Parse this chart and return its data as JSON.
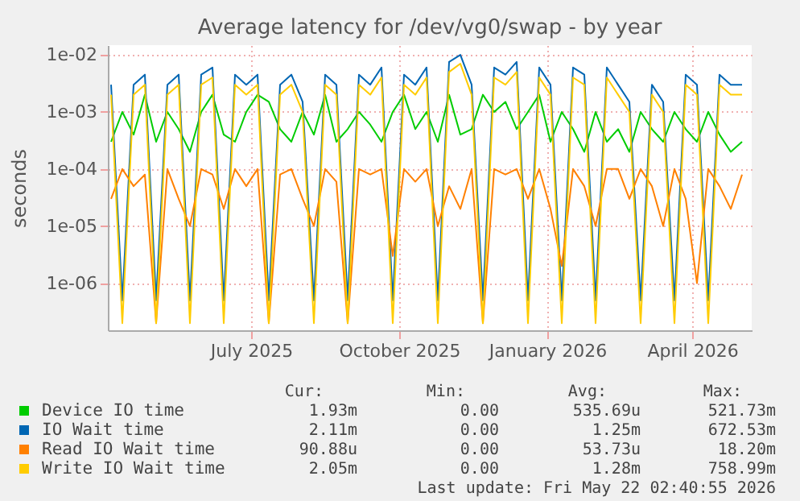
{
  "chart_data": {
    "type": "line",
    "title": "Average latency for /dev/vg0/swap - by year",
    "ylabel": "seconds",
    "log": "y",
    "grid": true,
    "legend": "bottom",
    "marker": "none",
    "line_style": "solid",
    "xlim": [
      "2025-04-03",
      "2026-05-08"
    ],
    "xticks": [
      {
        "value": "2025-07-01",
        "label": "July 2025"
      },
      {
        "value": "2025-10-01",
        "label": "October 2025"
      },
      {
        "value": "2026-01-01",
        "label": "January 2026"
      },
      {
        "value": "2026-04-01",
        "label": "April 2026"
      }
    ],
    "ylim": [
      1.5e-07,
      0.0148
    ],
    "yticks": [
      {
        "value": 0.01,
        "label": "1e-02"
      },
      {
        "value": 0.001,
        "label": "1e-03"
      },
      {
        "value": 0.0001,
        "label": "1e-04"
      },
      {
        "value": 1e-05,
        "label": "1e-05"
      },
      {
        "value": 1e-06,
        "label": "1e-06"
      }
    ],
    "x": [
      "2025-04-05",
      "2025-04-12",
      "2025-04-19",
      "2025-04-26",
      "2025-05-03",
      "2025-05-10",
      "2025-05-17",
      "2025-05-24",
      "2025-05-31",
      "2025-06-07",
      "2025-06-14",
      "2025-06-21",
      "2025-06-28",
      "2025-07-05",
      "2025-07-12",
      "2025-07-19",
      "2025-07-26",
      "2025-08-02",
      "2025-08-09",
      "2025-08-16",
      "2025-08-23",
      "2025-08-30",
      "2025-09-06",
      "2025-09-13",
      "2025-09-20",
      "2025-09-27",
      "2025-10-04",
      "2025-10-11",
      "2025-10-18",
      "2025-10-25",
      "2025-11-01",
      "2025-11-08",
      "2025-11-15",
      "2025-11-22",
      "2025-11-29",
      "2025-12-06",
      "2025-12-13",
      "2025-12-20",
      "2025-12-27",
      "2026-01-03",
      "2026-01-10",
      "2026-01-17",
      "2026-01-24",
      "2026-01-31",
      "2026-02-07",
      "2026-02-14",
      "2026-02-21",
      "2026-02-28",
      "2026-03-07",
      "2026-03-14",
      "2026-03-21",
      "2026-03-28",
      "2026-04-04",
      "2026-04-11",
      "2026-04-18",
      "2026-04-25",
      "2026-05-02"
    ],
    "series": [
      {
        "name": "Device IO time",
        "color": "#00cc00",
        "values": [
          0.0003,
          0.001,
          0.0004,
          0.002,
          0.0003,
          0.001,
          0.0005,
          0.0002,
          0.001,
          0.002,
          0.0004,
          0.0003,
          0.001,
          0.002,
          0.0015,
          0.0005,
          0.0003,
          0.001,
          0.0004,
          0.002,
          0.0003,
          0.0005,
          0.001,
          0.0006,
          0.0003,
          0.001,
          0.002,
          0.0005,
          0.001,
          0.0003,
          0.002,
          0.0004,
          0.0005,
          0.002,
          0.001,
          0.0015,
          0.0005,
          0.001,
          0.002,
          0.0003,
          0.001,
          0.0005,
          0.0002,
          0.001,
          0.0003,
          0.0005,
          0.0002,
          0.001,
          0.0005,
          0.0003,
          0.001,
          0.0005,
          0.0003,
          0.001,
          0.0004,
          0.0002,
          0.0003
        ]
      },
      {
        "name": "IO Wait time",
        "color": "#0066b3",
        "values": [
          0.003,
          5e-07,
          0.003,
          0.0045,
          5e-07,
          0.003,
          0.0045,
          5e-07,
          0.0045,
          0.006,
          5e-07,
          0.0045,
          0.003,
          0.0045,
          5e-07,
          0.003,
          0.0045,
          0.0015,
          5e-07,
          0.0045,
          0.003,
          5e-07,
          0.0045,
          0.003,
          0.006,
          5e-07,
          0.0045,
          0.003,
          0.006,
          5e-07,
          0.0075,
          0.01,
          0.003,
          5e-07,
          0.006,
          0.0045,
          0.0075,
          5e-07,
          0.006,
          0.003,
          5e-07,
          0.006,
          0.0045,
          5e-07,
          0.006,
          0.003,
          0.0015,
          5e-07,
          0.003,
          0.0015,
          5e-07,
          0.0045,
          0.003,
          5e-07,
          0.0045,
          0.003,
          0.003
        ]
      },
      {
        "name": "Read IO Wait time",
        "color": "#ff8000",
        "values": [
          3e-05,
          0.0001,
          5e-05,
          8e-05,
          2e-07,
          0.0001,
          3e-05,
          1e-05,
          0.0001,
          8e-05,
          2e-05,
          0.0001,
          5e-05,
          0.0001,
          2e-07,
          8e-05,
          0.0001,
          3e-05,
          1e-05,
          0.0001,
          6e-05,
          2e-07,
          0.0001,
          8e-05,
          0.0001,
          3e-06,
          0.0001,
          6e-05,
          0.0001,
          1e-05,
          5e-05,
          2e-05,
          0.0001,
          2e-07,
          0.0001,
          8e-05,
          0.0001,
          3e-05,
          0.0001,
          2e-05,
          2e-06,
          0.0001,
          5e-05,
          1e-05,
          0.0001,
          0.0001,
          3e-05,
          0.0001,
          5e-05,
          1e-05,
          0.0001,
          3e-05,
          1e-06,
          0.0001,
          5e-05,
          2e-05,
          8e-05
        ]
      },
      {
        "name": "Write IO Wait time",
        "color": "#ffcc00",
        "values": [
          0.002,
          2e-07,
          0.002,
          0.003,
          2e-07,
          0.002,
          0.003,
          2e-07,
          0.003,
          0.004,
          2e-07,
          0.003,
          0.002,
          0.003,
          2e-07,
          0.002,
          0.003,
          0.001,
          2e-07,
          0.003,
          0.002,
          2e-07,
          0.003,
          0.002,
          0.004,
          2e-07,
          0.003,
          0.002,
          0.004,
          2e-07,
          0.005,
          0.007,
          0.002,
          2e-07,
          0.004,
          0.003,
          0.005,
          2e-07,
          0.004,
          0.002,
          2e-07,
          0.004,
          0.003,
          2e-07,
          0.004,
          0.002,
          0.001,
          2e-07,
          0.002,
          0.001,
          2e-07,
          0.003,
          0.002,
          2e-07,
          0.003,
          0.002,
          0.002
        ]
      }
    ],
    "annotations": [
      "Cur:",
      "Min:",
      "Avg:",
      "Max:",
      "1.93m",
      "0.00",
      "535.69u",
      "521.73m",
      "2.11m",
      "0.00",
      "1.25m",
      "672.53m",
      "90.88u",
      "0.00",
      "53.73u",
      "18.20m",
      "2.05m",
      "0.00",
      "1.28m",
      "758.99m",
      "Last update: Fri May 22 02:40:55 2026"
    ]
  }
}
